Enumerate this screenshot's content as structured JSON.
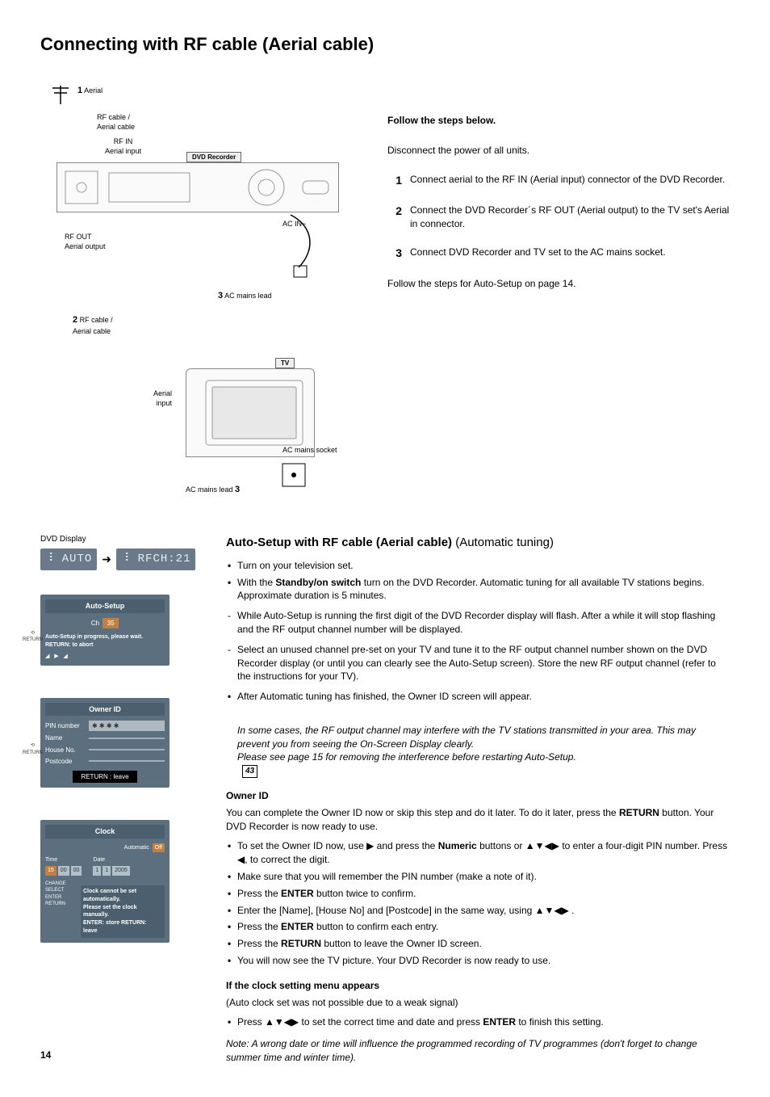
{
  "page_number": "14",
  "title": "Connecting with RF cable (Aerial cable)",
  "diagram": {
    "aerial_num": "1",
    "aerial_label": "Aerial",
    "rf_cable1": "RF cable /\nAerial cable",
    "rf_in": "RF IN\nAerial input",
    "dvd_recorder_label": "DVD Recorder",
    "ac_in": "AC IN~",
    "rf_out": "RF OUT\nAerial output",
    "rf_cable2_num": "2",
    "rf_cable2": "RF cable /\nAerial cable",
    "ac_mains_lead_num": "3",
    "ac_mains_lead": "AC mains lead",
    "tv_label": "TV",
    "aerial_input": "Aerial\ninput",
    "ac_mains_socket": "AC mains socket",
    "ac_mains_lead_b_num": "3",
    "ac_mains_lead_b": "AC mains lead"
  },
  "instructions": {
    "follow": "Follow the steps below.",
    "disconnect": "Disconnect the power of all units.",
    "steps": [
      {
        "num": "1",
        "text": "Connect aerial to the RF IN (Aerial input) connector of the DVD Recorder."
      },
      {
        "num": "2",
        "text": "Connect the DVD Recorder´s RF OUT (Aerial output) to the TV set's Aerial in connector."
      },
      {
        "num": "3",
        "text": "Connect DVD Recorder and TV set to the AC mains socket."
      }
    ],
    "follow_setup": "Follow the steps for Auto-Setup on page 14."
  },
  "auto_setup": {
    "heading": "Auto-Setup with RF cable (Aerial cable)",
    "heading_suffix": " (Automatic tuning)",
    "dvd_display_label": "DVD Display",
    "lcd_left": "⠸ AUTO",
    "lcd_right": "⠸ RFCH:21",
    "bullets1": [
      "Turn on your television set.",
      "With the <b>Standby/on switch</b> turn on the DVD Recorder. Automatic tuning for all available TV stations begins. Approximate duration is 5 minutes."
    ],
    "dashes": [
      "While Auto-Setup is running the first digit of the DVD Recorder display will flash. After a while it will stop flashing and the RF output channel number will be displayed.",
      "Select an unused channel pre-set on your TV and tune it to the RF output channel number shown on the DVD Recorder display (or until you can clearly see the Auto-Setup screen). Store the new RF output channel (refer to the instructions for your TV)."
    ],
    "bullet_after": "After Automatic tuning has finished, the Owner ID screen will appear.",
    "italic_note": "In some cases, the RF output channel may interfere with the TV stations transmitted in your area. This may prevent you from seeing the On-Screen Display clearly.\nPlease see page 15  for removing the interference before restarting Auto-Setup.",
    "page_ref": "43"
  },
  "osd_autosetup": {
    "title": "Auto-Setup",
    "ch_label": "Ch",
    "ch_value": "35",
    "msg": "Auto-Setup in progress, please wait.\nRETURN: to abort",
    "return": "RETURN"
  },
  "owner_id": {
    "heading": "Owner ID",
    "intro": "You can complete the Owner ID now or skip this step and do it later. To do it later, press the <b>RETURN</b> button. Your DVD Recorder is now ready to use.",
    "bullets": [
      "To set the Owner ID now, use ▶ and press the <b>Numeric</b> buttons or ▲▼◀▶ to enter a four-digit PIN number. Press ◀, to correct the digit.",
      "Make sure that you will remember the PIN number (make a note of it).",
      "Press the <b>ENTER</b> button twice to confirm.",
      "Enter the [Name], [House No] and [Postcode] in the same way, using ▲▼◀▶ .",
      "Press the <b>ENTER</b> button to confirm each entry.",
      "Press the <b>RETURN</b> button to leave the Owner ID screen.",
      "You will now see the TV picture. Your DVD Recorder is now ready to use."
    ]
  },
  "osd_owner": {
    "title": "Owner ID",
    "rows": [
      {
        "label": "PIN number",
        "value": "✱ ✱ ✱ ✱"
      },
      {
        "label": "Name",
        "value": ""
      },
      {
        "label": "House No.",
        "value": ""
      },
      {
        "label": "Postcode",
        "value": ""
      }
    ],
    "return": "RETURN",
    "leave": "RETURN : leave"
  },
  "clock": {
    "heading": "If the clock setting menu appears",
    "sub": "(Auto clock set was not possible due to a weak signal)",
    "bullet": "Press ▲▼◀▶ to set the correct time and date and press <b>ENTER</b> to finish this setting.",
    "note": "Note: A wrong date or time will influence the programmed recording of TV programmes (don't forget to change summer time and winter time)."
  },
  "osd_clock": {
    "title": "Clock",
    "auto_label": "Automatic",
    "auto_value": "Off",
    "time_label": "Time",
    "date_label": "Date",
    "time_h": "15",
    "time_m": "00",
    "time_s": "00",
    "date_d": "1",
    "date_m": "1",
    "date_y": "2005",
    "msg": "Clock cannot be set automatically.\nPlease set the clock manually.\nENTER: store   RETURN: leave",
    "side_labels": "CHANGE  SELECT\nENTER   RETURN"
  },
  "colors": {
    "lcd_bg": "#6a7a8a",
    "lcd_fg": "#e8ecef",
    "osd_bg": "#5b6f7e",
    "osd_title_bg": "#4b5f6e",
    "osd_field_bg": "#9fb0ba",
    "highlight": "#c08040"
  }
}
